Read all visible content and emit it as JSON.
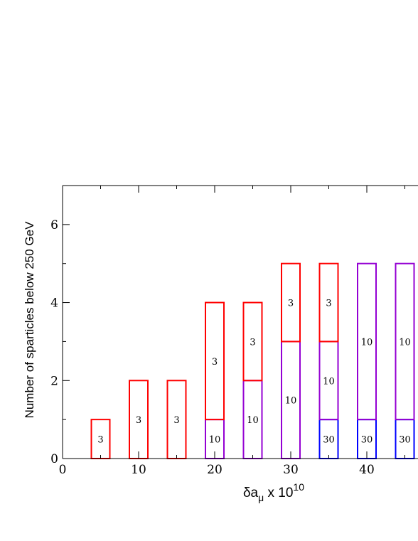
{
  "chart_data": {
    "type": "bar",
    "title": "",
    "ylabel": "Number of sparticles below 250 GeV",
    "xlabel": {
      "prefix": "δa",
      "subscript": "μ",
      "middle": " x 10",
      "superscript": "10"
    },
    "xlim": [
      0,
      50
    ],
    "ylim": [
      0,
      7
    ],
    "xticks": [
      "0",
      "10",
      "20",
      "30",
      "40"
    ],
    "yticks": [
      "0",
      "2",
      "4",
      "6"
    ],
    "grid": false,
    "bars": [
      {
        "x": 5,
        "segments": [
          {
            "from": 0,
            "to": 1,
            "color": "#ff0000",
            "label": "3"
          }
        ]
      },
      {
        "x": 10,
        "segments": [
          {
            "from": 0,
            "to": 2,
            "color": "#ff0000",
            "label": "3"
          }
        ]
      },
      {
        "x": 15,
        "segments": [
          {
            "from": 0,
            "to": 2,
            "color": "#ff0000",
            "label": "3"
          }
        ]
      },
      {
        "x": 20,
        "segments": [
          {
            "from": 0,
            "to": 1,
            "color": "#9400d3",
            "label": "10"
          },
          {
            "from": 1,
            "to": 4,
            "color": "#ff0000",
            "label": "3"
          }
        ]
      },
      {
        "x": 25,
        "segments": [
          {
            "from": 0,
            "to": 2,
            "color": "#9400d3",
            "label": "10"
          },
          {
            "from": 2,
            "to": 4,
            "color": "#ff0000",
            "label": "3"
          }
        ]
      },
      {
        "x": 30,
        "segments": [
          {
            "from": 0,
            "to": 3,
            "color": "#9400d3",
            "label": "10"
          },
          {
            "from": 3,
            "to": 5,
            "color": "#ff0000",
            "label": "3"
          }
        ]
      },
      {
        "x": 35,
        "segments": [
          {
            "from": 0,
            "to": 1,
            "color": "#0000ff",
            "label": "30"
          },
          {
            "from": 1,
            "to": 3,
            "color": "#9400d3",
            "label": "10"
          },
          {
            "from": 3,
            "to": 5,
            "color": "#ff0000",
            "label": "3"
          }
        ]
      },
      {
        "x": 40,
        "segments": [
          {
            "from": 0,
            "to": 1,
            "color": "#0000ff",
            "label": "30"
          },
          {
            "from": 1,
            "to": 5,
            "color": "#9400d3",
            "label": "10"
          }
        ]
      },
      {
        "x": 45,
        "segments": [
          {
            "from": 0,
            "to": 1,
            "color": "#0000ff",
            "label": "30"
          },
          {
            "from": 1,
            "to": 5,
            "color": "#9400d3",
            "label": "10"
          }
        ]
      }
    ]
  }
}
